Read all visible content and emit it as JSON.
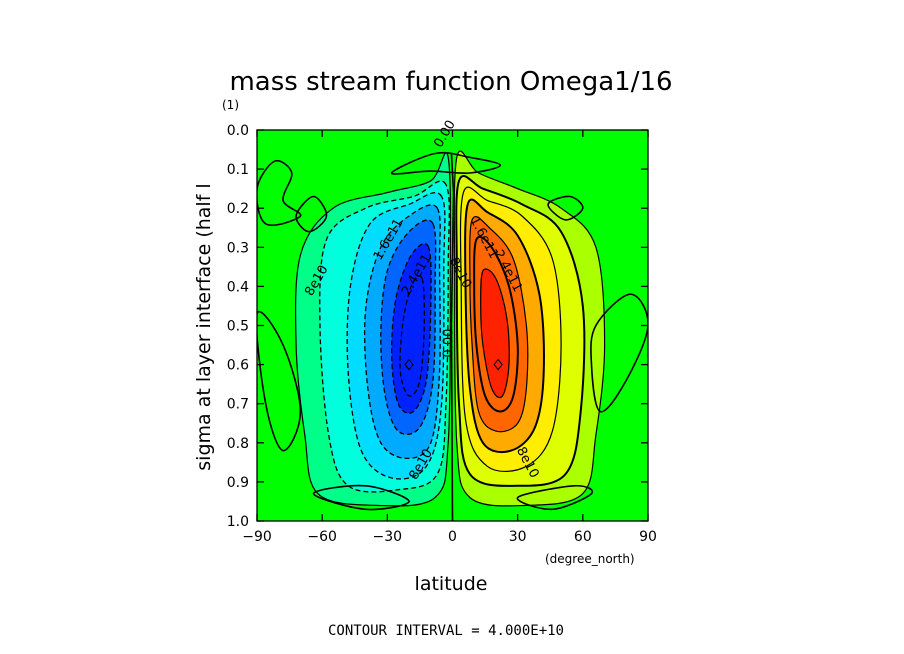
{
  "chart_data": {
    "type": "contour",
    "title": "mass stream function Omega1/16",
    "ylabel": "sigma at layer interface (half l",
    "yunits": "(1)",
    "xlabel": "latitude",
    "xunits": "(degree_north)",
    "xlim": [
      -90,
      90
    ],
    "ylim": [
      1.0,
      0.0
    ],
    "xticks": [
      -90,
      -60,
      -30,
      0,
      30,
      60,
      90
    ],
    "xtick_labels": [
      "−90",
      "−60",
      "−30",
      "0",
      "30",
      "60",
      "90"
    ],
    "yticks": [
      0.0,
      0.1,
      0.2,
      0.3,
      0.4,
      0.5,
      0.6,
      0.7,
      0.8,
      0.9,
      1.0
    ],
    "ytick_labels": [
      "0.0",
      "0.1",
      "0.2",
      "0.3",
      "0.4",
      "0.5",
      "0.6",
      "0.7",
      "0.8",
      "0.9",
      "1.0"
    ],
    "contour_interval_text": "CONTOUR INTERVAL = 4.000E+10",
    "contour_interval": 40000000000,
    "cells": [
      {
        "sign": -1,
        "center_lat": -20,
        "center_sigma": 0.6,
        "extremum": -320000000000.0
      },
      {
        "sign": 1,
        "center_lat": 21,
        "center_sigma": 0.6,
        "extremum": 320000000000.0
      }
    ],
    "contour_labels": [
      {
        "text": "0.00",
        "lat": -2,
        "sigma": 0.015
      },
      {
        "text": "8e10",
        "lat": -61,
        "sigma": 0.39
      },
      {
        "text": "1.6e11",
        "lat": -28,
        "sigma": 0.285
      },
      {
        "text": "2.4e11",
        "lat": -15,
        "sigma": 0.375
      },
      {
        "text": "8e10",
        "lat": 2,
        "sigma": 0.37
      },
      {
        "text": "0.00",
        "lat": 0,
        "sigma": 0.545
      },
      {
        "text": "8e10",
        "lat": -13,
        "sigma": 0.86
      },
      {
        "text": "1.6e11",
        "lat": 13,
        "sigma": 0.28
      },
      {
        "text": "2.4e11",
        "lat": 24,
        "sigma": 0.365
      },
      {
        "text": "8e10",
        "lat": 33,
        "sigma": 0.855
      }
    ],
    "colors": {
      "background": "#00ff00",
      "neg1": "#00ff88",
      "neg2": "#00ffdd",
      "neg3": "#00ddff",
      "neg4": "#00aaff",
      "neg5": "#0066ff",
      "neg6": "#0022ff",
      "pos1": "#aaff00",
      "pos2": "#ddff00",
      "pos3": "#ffee00",
      "pos4": "#ffaa00",
      "pos5": "#ff6600",
      "pos6": "#ff2200"
    }
  }
}
